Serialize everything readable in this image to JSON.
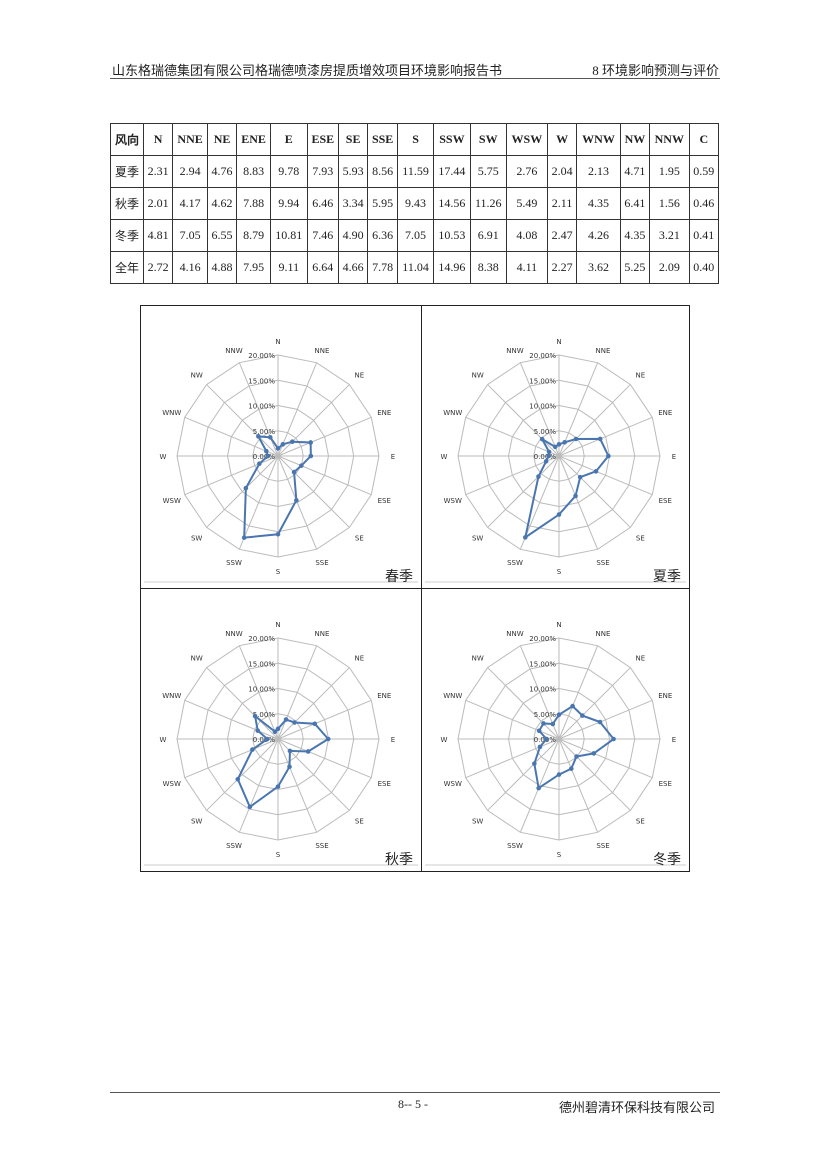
{
  "header": {
    "left": "山东格瑞德集团有限公司格瑞德喷漆房提质增效项目环境影响报告书",
    "right": "8 环境影响预测与评价"
  },
  "table": {
    "headers": [
      "风向",
      "N",
      "NNE",
      "NE",
      "ENE",
      "E",
      "ESE",
      "SE",
      "SSE",
      "S",
      "SSW",
      "SW",
      "WSW",
      "W",
      "WNW",
      "NW",
      "NNW",
      "C"
    ],
    "rows": [
      [
        "夏季",
        "2.31",
        "2.94",
        "4.76",
        "8.83",
        "9.78",
        "7.93",
        "5.93",
        "8.56",
        "11.59",
        "17.44",
        "5.75",
        "2.76",
        "2.04",
        "2.13",
        "4.71",
        "1.95",
        "0.59"
      ],
      [
        "秋季",
        "2.01",
        "4.17",
        "4.62",
        "7.88",
        "9.94",
        "6.46",
        "3.34",
        "5.95",
        "9.43",
        "14.56",
        "11.26",
        "5.49",
        "2.11",
        "4.35",
        "6.41",
        "1.56",
        "0.46"
      ],
      [
        "冬季",
        "4.81",
        "7.05",
        "6.55",
        "8.79",
        "10.81",
        "7.46",
        "4.90",
        "6.36",
        "7.05",
        "10.53",
        "6.91",
        "4.08",
        "2.47",
        "4.26",
        "4.35",
        "3.21",
        "0.41"
      ],
      [
        "全年",
        "2.72",
        "4.16",
        "4.88",
        "7.95",
        "9.11",
        "6.64",
        "4.66",
        "7.78",
        "11.04",
        "14.96",
        "8.38",
        "4.11",
        "2.27",
        "3.62",
        "5.25",
        "2.09",
        "0.40"
      ]
    ]
  },
  "chart_data": [
    {
      "type": "radar",
      "title": "春季",
      "categories": [
        "N",
        "NNE",
        "NE",
        "ENE",
        "E",
        "ESE",
        "SE",
        "SSE",
        "S",
        "SSW",
        "SW",
        "WSW",
        "W",
        "WNW",
        "NW",
        "NNW"
      ],
      "values": [
        1.5,
        2.5,
        4.0,
        7.0,
        6.5,
        5.0,
        4.5,
        9.5,
        15.5,
        17.5,
        9.0,
        4.0,
        2.0,
        2.5,
        5.5,
        4.0
      ],
      "ticks": [
        "0.00%",
        "5.00%",
        "10.00%",
        "15.00%",
        "20.00%"
      ],
      "rlim": [
        0,
        20
      ],
      "color": "#4a76b0"
    },
    {
      "type": "radar",
      "title": "夏季",
      "categories": [
        "N",
        "NNE",
        "NE",
        "ENE",
        "E",
        "ESE",
        "SE",
        "SSE",
        "S",
        "SSW",
        "SW",
        "WSW",
        "W",
        "WNW",
        "NW",
        "NNW"
      ],
      "values": [
        2.31,
        2.94,
        4.76,
        8.83,
        9.78,
        7.93,
        5.93,
        8.56,
        11.59,
        17.44,
        5.75,
        2.76,
        2.04,
        2.13,
        4.71,
        1.95
      ],
      "ticks": [
        "0.00%",
        "5.00%",
        "10.00%",
        "15.00%",
        "20.00%"
      ],
      "rlim": [
        0,
        20
      ],
      "color": "#4a76b0"
    },
    {
      "type": "radar",
      "title": "秋季",
      "categories": [
        "N",
        "NNE",
        "NE",
        "ENE",
        "E",
        "ESE",
        "SE",
        "SSE",
        "S",
        "SSW",
        "SW",
        "WSW",
        "W",
        "WNW",
        "NW",
        "NNW"
      ],
      "values": [
        2.01,
        4.17,
        4.62,
        7.88,
        9.94,
        6.46,
        3.34,
        5.95,
        9.43,
        14.56,
        11.26,
        5.49,
        2.11,
        4.35,
        6.41,
        1.56
      ],
      "ticks": [
        "0.00%",
        "5.00%",
        "10.00%",
        "15.00%",
        "20.00%"
      ],
      "rlim": [
        0,
        20
      ],
      "color": "#4a76b0"
    },
    {
      "type": "radar",
      "title": "冬季",
      "categories": [
        "N",
        "NNE",
        "NE",
        "ENE",
        "E",
        "ESE",
        "SE",
        "SSE",
        "S",
        "SSW",
        "SW",
        "WSW",
        "W",
        "WNW",
        "NW",
        "NNW"
      ],
      "values": [
        4.81,
        7.05,
        6.55,
        8.79,
        10.81,
        7.46,
        4.9,
        6.36,
        7.05,
        10.53,
        6.91,
        4.08,
        2.47,
        4.26,
        4.35,
        3.21
      ],
      "ticks": [
        "0.00%",
        "5.00%",
        "10.00%",
        "15.00%",
        "20.00%"
      ],
      "rlim": [
        0,
        20
      ],
      "color": "#4a76b0"
    }
  ],
  "footer": {
    "page": "8-- 5 -",
    "company": "德州碧清环保科技有限公司"
  }
}
